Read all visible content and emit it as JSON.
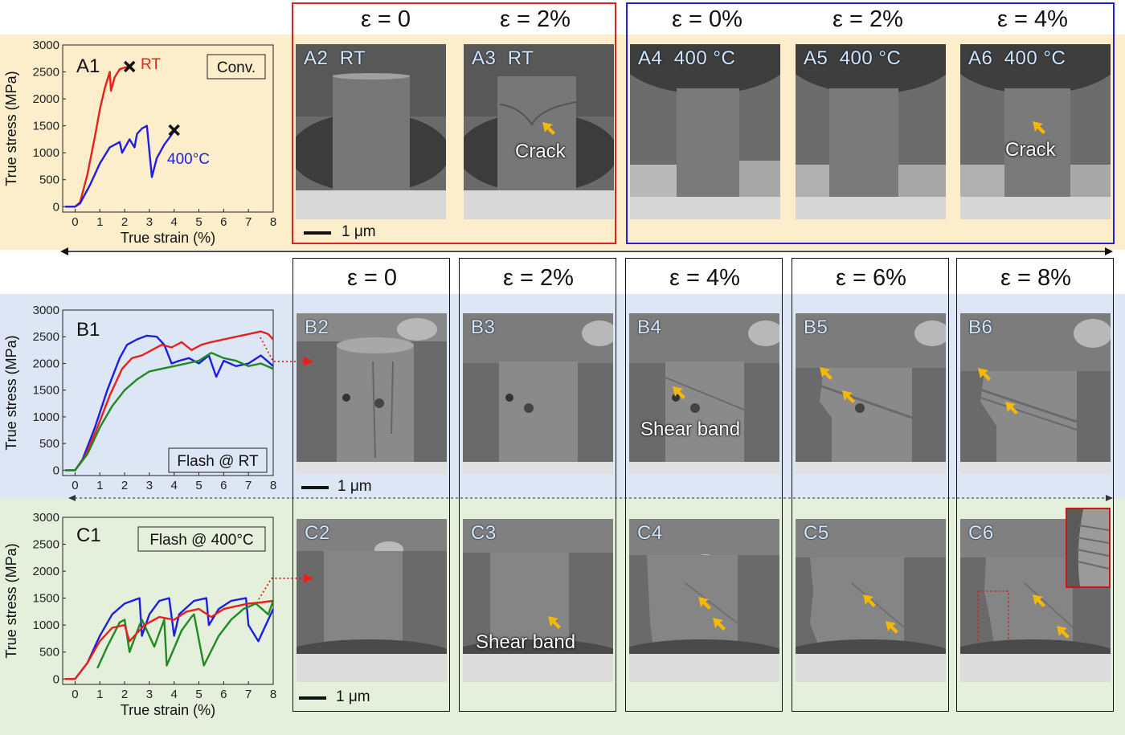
{
  "row_a": {
    "group_headers": [
      "ε = 0",
      "ε = 2%",
      "ε = 0%",
      "ε = 2%",
      "ε = 4%"
    ],
    "panels": [
      {
        "id": "A2",
        "cond": "RT",
        "annotation": ""
      },
      {
        "id": "A3",
        "cond": "RT",
        "annotation": "Crack"
      },
      {
        "id": "A4",
        "cond": "400 °C",
        "annotation": ""
      },
      {
        "id": "A5",
        "cond": "400 °C",
        "annotation": ""
      },
      {
        "id": "A6",
        "cond": "400 °C",
        "annotation": "Crack"
      }
    ],
    "scale": "1 μm",
    "frame_colors": {
      "rt": "#e02020",
      "hot": "#2020e0"
    }
  },
  "row_b": {
    "headers": [
      "ε = 0",
      "ε = 2%",
      "ε = 4%",
      "ε = 6%",
      "ε = 8%"
    ],
    "panels": [
      {
        "id": "B2",
        "annotation": ""
      },
      {
        "id": "B3",
        "annotation": ""
      },
      {
        "id": "B4",
        "annotation": "Shear band"
      },
      {
        "id": "B5",
        "annotation": ""
      },
      {
        "id": "B6",
        "annotation": ""
      }
    ],
    "scale": "1 μm"
  },
  "row_c": {
    "panels": [
      {
        "id": "C2",
        "annotation": ""
      },
      {
        "id": "C3",
        "annotation": "Shear band"
      },
      {
        "id": "C4",
        "annotation": ""
      },
      {
        "id": "C5",
        "annotation": ""
      },
      {
        "id": "C6",
        "annotation": ""
      }
    ],
    "scale": "1 μm"
  },
  "colors": {
    "band_a": "#fdeecb",
    "band_b": "#dde6f4",
    "band_c": "#e4f0dc",
    "red": "#e8201c",
    "blue": "#1e1ee0",
    "green": "#1f8a1f",
    "arrow": "#f5b800"
  },
  "chart_data": [
    {
      "panel": "A1",
      "type": "line",
      "legend_box": "Conv.",
      "xlabel": "True strain (%)",
      "ylabel": "True stress (MPa)",
      "xlim": [
        -0.5,
        8
      ],
      "ylim": [
        -100,
        3000
      ],
      "xticks": [
        "0",
        "1",
        "2",
        "3",
        "4",
        "5",
        "6",
        "7",
        "8"
      ],
      "yticks": [
        "0",
        "500",
        "1000",
        "1500",
        "2000",
        "2500",
        "3000"
      ],
      "series": [
        {
          "name": "RT",
          "color": "#e8201c",
          "x": [
            -0.4,
            0,
            0.2,
            0.5,
            0.8,
            1.0,
            1.2,
            1.4,
            1.45,
            1.6,
            1.8,
            2.0,
            2.2
          ],
          "y": [
            0,
            0,
            80,
            600,
            1300,
            1800,
            2200,
            2500,
            2150,
            2400,
            2550,
            2580,
            2600
          ]
        },
        {
          "name": "400°C",
          "color": "#1e1ee0",
          "x": [
            -0.4,
            0,
            0.2,
            0.6,
            1.0,
            1.4,
            1.8,
            1.9,
            2.2,
            2.4,
            2.5,
            2.7,
            2.9,
            3.1,
            3.3,
            3.6,
            4.0
          ],
          "y": [
            0,
            0,
            60,
            400,
            800,
            1100,
            1200,
            1000,
            1250,
            1100,
            1350,
            1450,
            1500,
            550,
            900,
            1150,
            1400
          ]
        }
      ],
      "annotations": [
        {
          "text": "RT",
          "color": "#e8201c"
        },
        {
          "text": "400°C",
          "color": "#1e1ee0"
        }
      ],
      "failure_markers": [
        {
          "x": 2.2,
          "y": 2600
        },
        {
          "x": 4.0,
          "y": 1420
        }
      ]
    },
    {
      "panel": "B1",
      "type": "line",
      "legend_box": "Flash @ RT",
      "xlabel": "",
      "ylabel": "True stress (MPa)",
      "xlim": [
        -0.5,
        8
      ],
      "ylim": [
        -100,
        3000
      ],
      "xticks": [
        "0",
        "1",
        "2",
        "3",
        "4",
        "5",
        "6",
        "7",
        "8"
      ],
      "yticks": [
        "0",
        "500",
        "1000",
        "1500",
        "2000",
        "2500",
        "3000"
      ],
      "series": [
        {
          "color": "#1e1ee0",
          "x": [
            -0.4,
            0,
            0.3,
            0.8,
            1.3,
            1.8,
            2.1,
            2.5,
            2.9,
            3.3,
            3.6,
            3.9,
            4.2,
            4.6,
            5.0,
            5.4,
            5.7,
            6.0,
            6.5,
            7.0,
            7.5,
            8.0
          ],
          "y": [
            0,
            0,
            200,
            800,
            1500,
            2100,
            2350,
            2450,
            2520,
            2500,
            2350,
            2000,
            2050,
            2100,
            2000,
            2150,
            1750,
            2050,
            1950,
            2000,
            2150,
            1950
          ]
        },
        {
          "color": "#e8201c",
          "x": [
            -0.4,
            0,
            0.4,
            0.9,
            1.4,
            1.9,
            2.3,
            2.7,
            3.1,
            3.5,
            3.9,
            4.3,
            4.7,
            5.1,
            5.5,
            6.0,
            6.5,
            7.0,
            7.5,
            7.8,
            8.0
          ],
          "y": [
            0,
            0,
            250,
            800,
            1400,
            1900,
            2100,
            2150,
            2250,
            2350,
            2300,
            2400,
            2250,
            2350,
            2400,
            2450,
            2500,
            2550,
            2600,
            2550,
            2450
          ]
        },
        {
          "color": "#1f8a1f",
          "x": [
            -0.4,
            0,
            0.5,
            1.0,
            1.5,
            2.0,
            2.5,
            3.0,
            3.5,
            4.0,
            4.5,
            5.0,
            5.5,
            6.0,
            6.5,
            7.0,
            7.5,
            8.0
          ],
          "y": [
            0,
            0,
            300,
            800,
            1200,
            1500,
            1700,
            1850,
            1900,
            1950,
            2000,
            2050,
            2200,
            2100,
            2050,
            1950,
            2000,
            1900
          ]
        }
      ]
    },
    {
      "panel": "C1",
      "type": "line",
      "legend_box": "Flash @ 400°C",
      "xlabel": "True strain (%)",
      "ylabel": "True stress (MPa)",
      "xlim": [
        -0.5,
        8
      ],
      "ylim": [
        -100,
        3000
      ],
      "xticks": [
        "0",
        "1",
        "2",
        "3",
        "4",
        "5",
        "6",
        "7",
        "8"
      ],
      "yticks": [
        "0",
        "500",
        "1000",
        "1500",
        "2000",
        "2500",
        "3000"
      ],
      "series": [
        {
          "color": "#1e1ee0",
          "x": [
            -0.4,
            0,
            0.5,
            1.0,
            1.5,
            2.0,
            2.6,
            2.7,
            3.0,
            3.4,
            3.8,
            4.0,
            4.2,
            4.8,
            5.3,
            5.4,
            5.8,
            6.3,
            6.9,
            7.0,
            7.4,
            7.8,
            8.0
          ],
          "y": [
            0,
            0,
            300,
            800,
            1200,
            1400,
            1500,
            800,
            1200,
            1450,
            1500,
            800,
            1200,
            1450,
            1500,
            1000,
            1300,
            1450,
            1500,
            1000,
            700,
            1100,
            1300
          ]
        },
        {
          "color": "#1f8a1f",
          "x": [
            0.9,
            1.3,
            1.8,
            2.0,
            2.2,
            2.6,
            2.7,
            3.2,
            3.6,
            3.7,
            4.3,
            4.7,
            4.8,
            5.2,
            5.8,
            6.3,
            6.8,
            7.3,
            7.8,
            8.0
          ],
          "y": [
            200,
            600,
            1050,
            1100,
            500,
            1000,
            1100,
            600,
            1100,
            250,
            900,
            1150,
            1200,
            250,
            800,
            1100,
            1300,
            1400,
            1200,
            1450
          ]
        },
        {
          "color": "#e8201c",
          "x": [
            -0.4,
            0,
            0.5,
            1.0,
            1.5,
            2.0,
            2.2,
            2.8,
            3.4,
            4.0,
            4.5,
            5.0,
            5.5,
            6.0,
            6.5,
            7.0,
            7.5,
            8.0
          ],
          "y": [
            0,
            0,
            300,
            700,
            950,
            1000,
            700,
            1000,
            1150,
            1100,
            1250,
            1300,
            1150,
            1300,
            1350,
            1400,
            1420,
            1450
          ]
        }
      ]
    }
  ]
}
